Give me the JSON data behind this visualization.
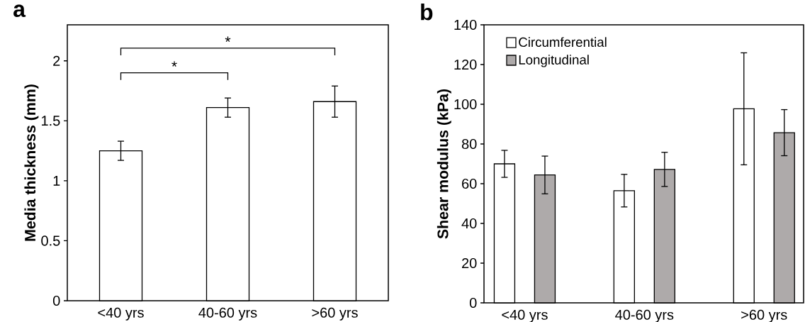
{
  "chart_data": [
    {
      "type": "bar",
      "title": "a",
      "ylabel": "Media thickness (mm)",
      "categories": [
        "<40 yrs",
        "40-60 yrs",
        ">60 yrs"
      ],
      "color": "#ffffff",
      "values": [
        1.25,
        1.61,
        1.66
      ],
      "errors": [
        0.08,
        0.08,
        0.13
      ],
      "ylim": [
        0,
        2.3
      ],
      "yticks": [
        0,
        0.5,
        1,
        1.5,
        2
      ],
      "annotations": [
        "*",
        "*"
      ]
    },
    {
      "type": "bar",
      "title": "b",
      "ylabel": "Shear modulus (kPa)",
      "categories": [
        "<40 yrs",
        "40-60 yrs",
        ">60 yrs"
      ],
      "legend": "top left",
      "ylim": [
        0,
        140
      ],
      "yticks": [
        0,
        20,
        40,
        60,
        80,
        100,
        120,
        140
      ],
      "series": [
        {
          "name": "Circumferential",
          "color": "#ffffff",
          "values": [
            70,
            56.5,
            97.7
          ],
          "errors": [
            6.8,
            8.2,
            28.2
          ]
        },
        {
          "name": "Longitudinal",
          "color": "#aeaaaa",
          "values": [
            64.4,
            67.2,
            85.7
          ],
          "errors": [
            9.5,
            8.6,
            11.6
          ]
        }
      ]
    }
  ]
}
